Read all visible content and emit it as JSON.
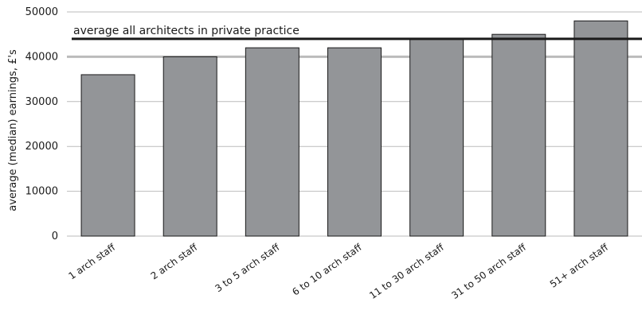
{
  "chart_data": {
    "type": "bar",
    "categories": [
      "1 arch staff",
      "2 arch staff",
      "3 to 5 arch staff",
      "6 to 10 arch staff",
      "11 to 30 arch staff",
      "31 to 50 arch staff",
      "51+ arch staff"
    ],
    "values": [
      36000,
      40000,
      42000,
      42000,
      44000,
      45000,
      48000
    ],
    "ylabel": "average (median) earnings, £'s",
    "xlabel": "",
    "ylim": [
      0,
      50000
    ],
    "yticks": [
      0,
      10000,
      20000,
      30000,
      40000,
      50000
    ],
    "grid": true,
    "reference_line": {
      "value": 44000,
      "label": "average all architects in private practice"
    },
    "colors": {
      "bar": "#939598",
      "bar_edge": "#1a1a1a",
      "grid": "#bbbbbb",
      "reference": "#1a1a1a"
    }
  }
}
